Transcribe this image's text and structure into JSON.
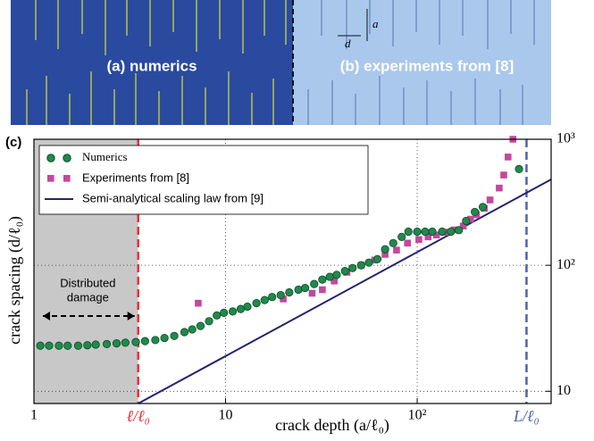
{
  "images": {
    "a_label": "(a) numerics",
    "b_label": "(b) experiments from [8]",
    "a_symbol": "a",
    "d_symbol": "d"
  },
  "chart_data": {
    "type": "scatter",
    "panel_label": "(c)",
    "xlabel": "crack depth (a/ℓ₀)",
    "ylabel": "crack spacing (d/ℓ₀)",
    "xscale": "log",
    "yscale": "log",
    "xlim": [
      1,
      500
    ],
    "ylim": [
      8,
      1000
    ],
    "xticks": [
      1,
      10,
      {
        "value": 100,
        "label": "10²"
      }
    ],
    "yticks": [
      10,
      {
        "value": 100,
        "label": "10²"
      },
      {
        "value": 1000,
        "label": "10³"
      }
    ],
    "grid": true,
    "legend": "upper left",
    "series": [
      {
        "name": "Numerics",
        "color": "#1f8a4c",
        "marker": "circle",
        "x": [
          1.08,
          1.2,
          1.35,
          1.5,
          1.7,
          1.9,
          2.1,
          2.4,
          2.7,
          3.0,
          3.4,
          3.8,
          4.3,
          4.8,
          5.4,
          6.1,
          6.7,
          7.4,
          8.2,
          9.0,
          9.8,
          10.9,
          12,
          13,
          14.5,
          16,
          17.5,
          19.4,
          21.5,
          24,
          26,
          29,
          32,
          35,
          38,
          42,
          46,
          51,
          56,
          62,
          68,
          75,
          83,
          90,
          100,
          110,
          120,
          135,
          150,
          165,
          180,
          200,
          220,
          340
        ],
        "values": [
          23,
          23,
          23,
          23,
          23,
          23.2,
          23.5,
          23.7,
          24,
          24.3,
          24.6,
          25,
          25.5,
          26.5,
          27.5,
          29.5,
          31,
          33,
          36,
          40,
          42,
          43,
          45,
          47,
          50,
          53,
          56,
          58,
          61,
          64,
          66,
          71,
          77,
          81,
          84,
          90,
          95,
          100,
          105,
          112,
          134,
          150,
          168,
          185,
          185,
          185,
          185,
          185,
          185,
          190,
          225,
          265,
          290,
          580
        ]
      },
      {
        "name": "Experiments from [8]",
        "color": "#c2489e",
        "marker": "square",
        "x": [
          7.2,
          20,
          28.3,
          32,
          36.9,
          43,
          51,
          60,
          68,
          78,
          89,
          102,
          114,
          126,
          140,
          156,
          174,
          190,
          204,
          224,
          240,
          268,
          283,
          298,
          316
        ],
        "values": [
          50,
          54,
          60,
          64,
          75,
          88,
          100,
          110,
          122,
          132,
          150,
          160,
          168,
          174,
          183,
          191,
          205,
          232,
          252,
          283,
          330,
          410,
          520,
          723,
          1000
        ]
      },
      {
        "name": "Semi-analytical scaling law from [9]",
        "color": "#24246e",
        "marker": "line",
        "x": [
          3.5,
          500
        ],
        "values": [
          8,
          480
        ]
      }
    ],
    "vlines": [
      {
        "x": 3.5,
        "label": "ℓ/ℓ₀",
        "color": "#e8303a"
      },
      {
        "x": 372,
        "label": "L/ℓ₀",
        "color": "#4a62b4"
      }
    ],
    "shaded": {
      "x": [
        1,
        3.5
      ],
      "color": "#c8c8c8",
      "label": [
        "Distributed",
        "damage"
      ]
    }
  }
}
